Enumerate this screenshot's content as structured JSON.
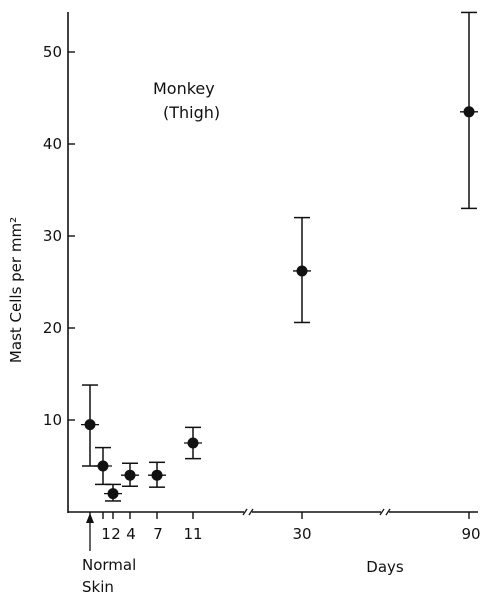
{
  "chart_data": {
    "type": "scatter",
    "title": "",
    "ylabel": "Mast Cells per mm²",
    "xlabel": "Days",
    "ylim": [
      0,
      55
    ],
    "y_ticks": [
      10,
      20,
      30,
      40,
      50
    ],
    "x_tick_labels": [
      "1",
      "2",
      "4",
      "7",
      "11",
      "30",
      "90"
    ],
    "x_axis_breaks": 2,
    "grid": false,
    "annotations": {
      "monkey_line1": "Monkey",
      "monkey_line2": "(Thigh)",
      "normal_line1": "Normal",
      "normal_line2": "Skin"
    },
    "points": [
      {
        "label": "Normal",
        "mean": 9.5,
        "low": 5.0,
        "high": 13.8
      },
      {
        "label": "1",
        "mean": 5.0,
        "low": 3.0,
        "high": 7.0
      },
      {
        "label": "2",
        "mean": 2.0,
        "low": 1.2,
        "high": 3.0
      },
      {
        "label": "4",
        "mean": 4.0,
        "low": 2.8,
        "high": 5.3
      },
      {
        "label": "7",
        "mean": 4.0,
        "low": 2.7,
        "high": 5.4
      },
      {
        "label": "11",
        "mean": 7.5,
        "low": 5.8,
        "high": 9.2
      },
      {
        "label": "30",
        "mean": 26.2,
        "low": 20.6,
        "high": 32.0
      },
      {
        "label": "90",
        "mean": 43.5,
        "low": 33.0,
        "high": 54.3
      }
    ]
  }
}
